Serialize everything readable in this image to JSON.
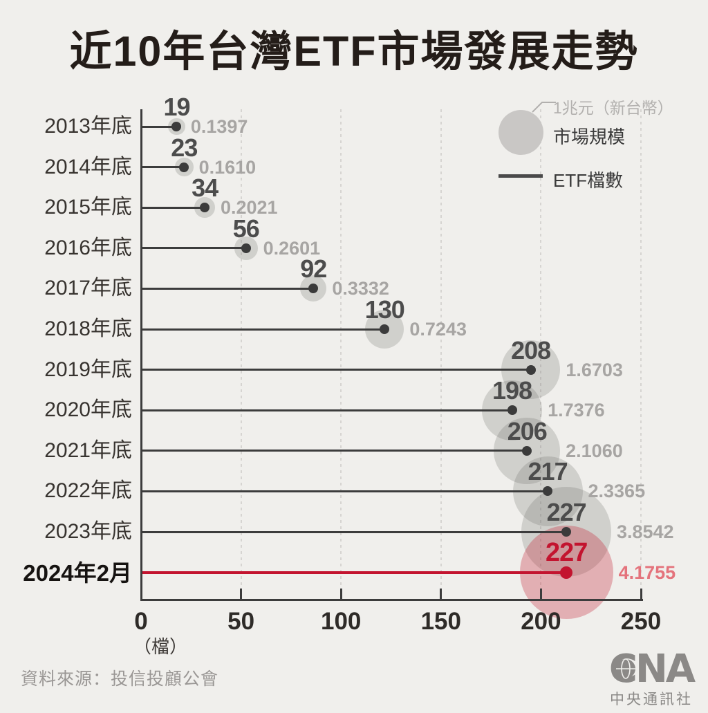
{
  "title": "近10年台灣ETF市場發展走勢",
  "legend": {
    "bubble_note": "1兆元（新台幣）",
    "bubble_label": "市場規模",
    "line_label": "ETF檔數"
  },
  "x_axis": {
    "ticks": [
      0,
      50,
      100,
      150,
      200,
      250
    ],
    "unit": "（檔）"
  },
  "chart_data": {
    "type": "scatter",
    "subtype": "horizontal-lollipop-with-bubbles",
    "title": "近10年台灣ETF市場發展走勢",
    "categories": [
      "2013年底",
      "2014年底",
      "2015年底",
      "2016年底",
      "2017年底",
      "2018年底",
      "2019年底",
      "2020年底",
      "2021年底",
      "2022年底",
      "2023年底",
      "2024年2月"
    ],
    "series": [
      {
        "name": "ETF檔數",
        "values": [
          19,
          23,
          34,
          56,
          92,
          130,
          208,
          198,
          206,
          217,
          227,
          227
        ]
      },
      {
        "name": "市場規模（兆元新台幣）",
        "values": [
          0.1397,
          0.161,
          0.2021,
          0.2601,
          0.3332,
          0.7243,
          1.6703,
          1.7376,
          2.106,
          2.3365,
          3.8542,
          4.1755
        ]
      }
    ],
    "highlight_index": 11,
    "xlim": [
      0,
      250
    ],
    "xlabel": "（檔）",
    "legend_position": "top-right",
    "grid": "vertical-dashed",
    "bubble_scale_note": "1兆元（新台幣）"
  },
  "colors": {
    "background": "#f0efec",
    "title_text": "#241d19",
    "dark_line": "#3c3c3c",
    "count_text": "#4c4c4c",
    "year_text": "#37332f",
    "value_text": "#a7a5a3",
    "gray_bubble": "rgba(110,108,106,0.24)",
    "accent_red": "#c3142f",
    "red_value_text": "#e4737c",
    "red_bubble": "rgba(197,28,45,0.30)",
    "gridline": "#d6d4d1",
    "logo_gray": "#8b8987"
  },
  "footer": {
    "source": "資料來源：投信投顧公會",
    "logo_acronym": "CNA",
    "logo_name": "中央通訊社"
  }
}
